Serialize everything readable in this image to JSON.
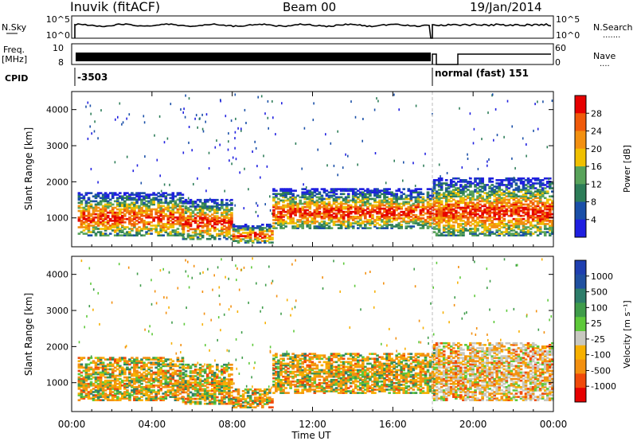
{
  "header": {
    "station": "Inuvik (fitACF)",
    "beam": "Beam 00",
    "date": "19/Jan/2014"
  },
  "status_panels": {
    "nsky": {
      "label": "N.Sky",
      "tick_top": "10^5",
      "tick_bottom": "10^0"
    },
    "nsearch": {
      "label": "N.Search",
      "tick_top": "10^5",
      "tick_bottom": "10^0",
      "legend": "......."
    },
    "freq": {
      "label_line1": "Freq.",
      "label_line2": "[MHz]",
      "tick_top": "10",
      "tick_bottom": "8"
    },
    "nave": {
      "label": "Nave",
      "tick_top": "60",
      "tick_bottom": "0",
      "legend": "...."
    },
    "cpid": {
      "label": "CPID",
      "segment1": "-3503",
      "segment2": "normal (fast) 151"
    }
  },
  "colors": {
    "power_scale": [
      "#1f1fe0",
      "#1a4fa8",
      "#2d7d58",
      "#58a35a",
      "#f0c000",
      "#f39010",
      "#f05a0a",
      "#e60000"
    ],
    "velocity_scale": [
      "#e60000",
      "#f04a0a",
      "#f39010",
      "#f7b000",
      "#c8c8c0",
      "#5ec93a",
      "#3f9c4a",
      "#2d7d6a",
      "#2050a0",
      "#1f3fb0"
    ],
    "scatter_gap": "#bbbbbb"
  },
  "chart_data": [
    {
      "type": "heatmap",
      "title": "",
      "xlabel": "",
      "ylabel": "Slant Range [km]",
      "xlim": [
        0,
        24
      ],
      "ylim": [
        200,
        4500
      ],
      "y_ticks": [
        "1000",
        "2000",
        "3000",
        "4000"
      ],
      "x_ticks": [
        "00:00",
        "04:00",
        "08:00",
        "12:00",
        "16:00",
        "20:00",
        "00:00"
      ],
      "colorbar": {
        "label": "Power [dB]",
        "range": [
          0,
          32
        ],
        "ticks": [
          "28",
          "24",
          "20",
          "16",
          "12",
          "8",
          "4"
        ]
      },
      "echo_bands": [
        {
          "t0": 0.3,
          "t1": 5.5,
          "r0": 500,
          "r1": 1700
        },
        {
          "t0": 5.5,
          "t1": 8.0,
          "r0": 400,
          "r1": 1500
        },
        {
          "t0": 8.0,
          "t1": 10.0,
          "r0": 300,
          "r1": 800
        },
        {
          "t0": 10.0,
          "t1": 18.0,
          "r0": 700,
          "r1": 1800
        },
        {
          "t0": 18.0,
          "t1": 24.0,
          "r0": 500,
          "r1": 2100
        }
      ]
    },
    {
      "type": "heatmap",
      "title": "",
      "xlabel": "Time UT",
      "ylabel": "Slant Range [km]",
      "xlim": [
        0,
        24
      ],
      "ylim": [
        200,
        4500
      ],
      "y_ticks": [
        "1000",
        "2000",
        "3000",
        "4000"
      ],
      "x_ticks": [
        "00:00",
        "04:00",
        "08:00",
        "12:00",
        "16:00",
        "20:00",
        "00:00"
      ],
      "colorbar": {
        "label": "Velocity [m s⁻¹]",
        "ticks": [
          "1000",
          "500",
          "100",
          "25",
          "-25",
          "-100",
          "-500",
          "-1000"
        ]
      },
      "echo_bands": [
        {
          "t0": 0.3,
          "t1": 5.5,
          "r0": 500,
          "r1": 1700
        },
        {
          "t0": 5.5,
          "t1": 8.0,
          "r0": 400,
          "r1": 1500
        },
        {
          "t0": 8.0,
          "t1": 10.0,
          "r0": 300,
          "r1": 800
        },
        {
          "t0": 10.0,
          "t1": 18.0,
          "r0": 700,
          "r1": 1800
        },
        {
          "t0": 18.0,
          "t1": 24.0,
          "r0": 500,
          "r1": 2100
        }
      ]
    }
  ]
}
